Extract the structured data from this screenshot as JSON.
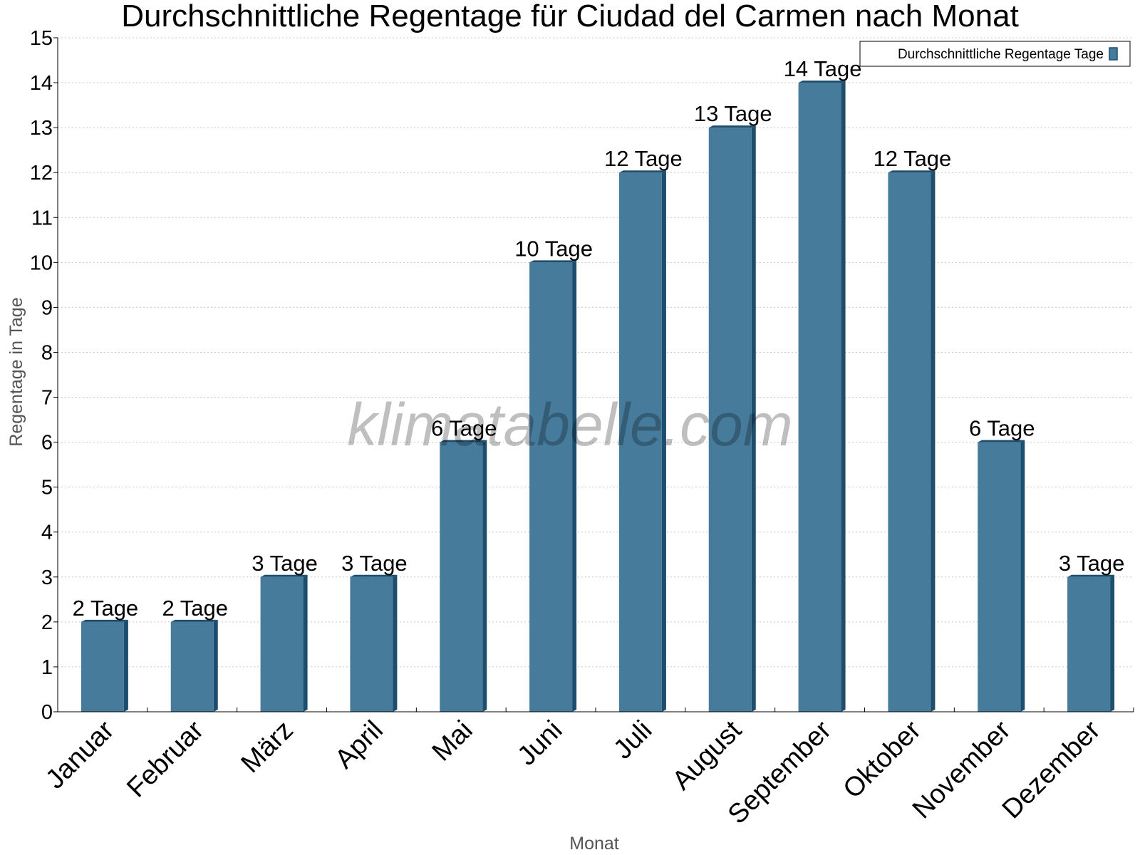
{
  "chart_data": {
    "type": "bar",
    "title": "Durchschnittliche Regentage für Ciudad del Carmen nach Monat",
    "xlabel": "Monat",
    "ylabel": "Regentage in Tage",
    "categories": [
      "Januar",
      "Februar",
      "März",
      "April",
      "Mai",
      "Juni",
      "Juli",
      "August",
      "September",
      "Oktober",
      "November",
      "Dezember"
    ],
    "series": [
      {
        "name": "Durchschnittliche Regentage Tage",
        "values": [
          2,
          2,
          3,
          3,
          6,
          10,
          12,
          13,
          14,
          12,
          6,
          3
        ],
        "labels": [
          "2 Tage",
          "2 Tage",
          "3 Tage",
          "3 Tage",
          "6 Tage",
          "10 Tage",
          "12 Tage",
          "13 Tage",
          "14 Tage",
          "12 Tage",
          "6 Tage",
          "3 Tage"
        ],
        "color": "#467b9c",
        "side_color": "#1e4e6e"
      }
    ],
    "ylim": [
      0,
      15
    ],
    "yticks": [
      "0",
      "1",
      "2",
      "3",
      "4",
      "5",
      "6",
      "7",
      "8",
      "9",
      "10",
      "11",
      "12",
      "13",
      "14",
      "15"
    ],
    "grid": true,
    "legend_position": "top-right",
    "watermark": "klimatabelle.com"
  }
}
